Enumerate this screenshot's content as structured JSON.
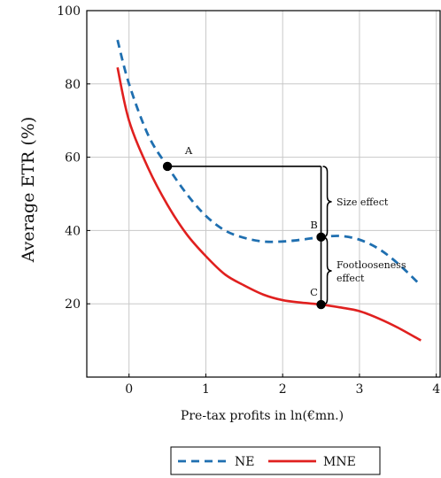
{
  "chart_data": {
    "type": "line",
    "xlabel": "Pre-tax profits in ln(€mn.)",
    "ylabel": "Average ETR (%)",
    "xlim": [
      -0.55,
      4.05
    ],
    "ylim": [
      0,
      100
    ],
    "xticks": [
      0,
      1,
      2,
      3,
      4
    ],
    "yticks": [
      20,
      40,
      60,
      80,
      100
    ],
    "grid": true,
    "legend_position": "bottom-center",
    "series": [
      {
        "name": "NE",
        "style": "dashed",
        "color": "#1f6fb0",
        "x": [
          -0.15,
          0,
          0.25,
          0.5,
          0.75,
          1.0,
          1.25,
          1.5,
          1.75,
          2.0,
          2.25,
          2.5,
          2.75,
          3.0,
          3.25,
          3.5,
          3.8
        ],
        "y": [
          92,
          80,
          66,
          57.5,
          50,
          44,
          40,
          38,
          37,
          37,
          37.5,
          38.2,
          38.5,
          37.5,
          35,
          31,
          25
        ]
      },
      {
        "name": "MNE",
        "style": "solid",
        "color": "#e0201f",
        "x": [
          -0.15,
          0,
          0.25,
          0.5,
          0.75,
          1.0,
          1.25,
          1.5,
          1.75,
          2.0,
          2.25,
          2.5,
          2.75,
          3.0,
          3.25,
          3.5,
          3.8
        ],
        "y": [
          84.5,
          70,
          57,
          47,
          39,
          33,
          28,
          25,
          22.5,
          21,
          20.3,
          19.8,
          19,
          18,
          16,
          13.5,
          10
        ]
      }
    ],
    "points": [
      {
        "label": "A",
        "x": 0.5,
        "y": 57.5
      },
      {
        "label": "B",
        "x": 2.5,
        "y": 38.2
      },
      {
        "label": "C",
        "x": 2.5,
        "y": 19.8
      }
    ],
    "annotations": {
      "size_effect": "Size effect",
      "footlooseness_line1": "Footlooseness",
      "footlooseness_line2": "effect"
    },
    "colors": {
      "grid": "#c8c8c8",
      "axis": "#000000"
    }
  }
}
